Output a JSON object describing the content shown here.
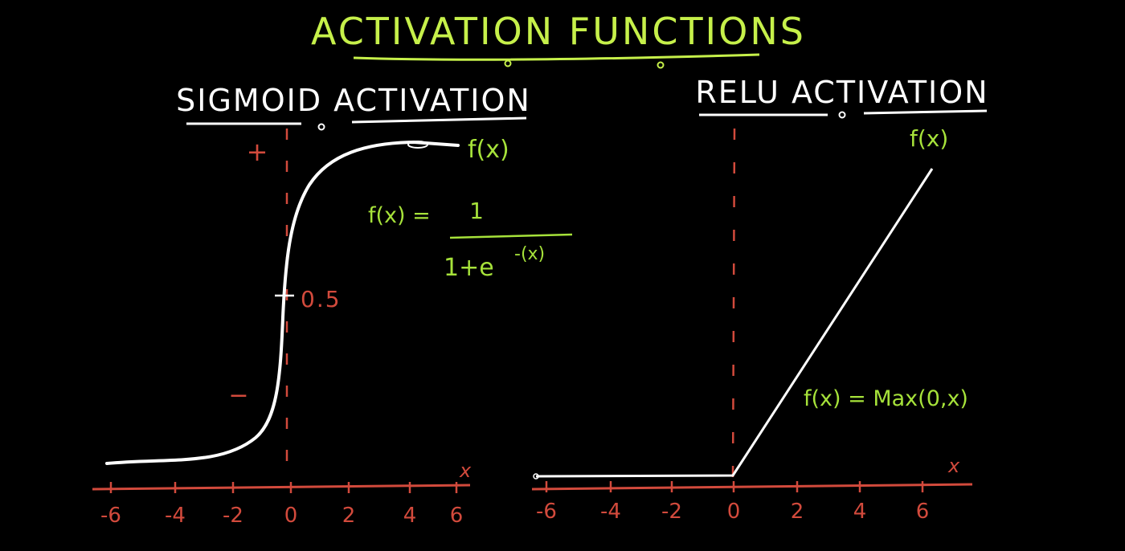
{
  "title": "ACTIVATION FUNCTIONS",
  "colors": {
    "background": "#000000",
    "title": "#c6f04a",
    "formula": "#a6e23a",
    "curve": "#ffffff",
    "axis": "#d24a3c",
    "heading": "#ffffff"
  },
  "sigmoid": {
    "heading": "SIGMOID ACTIVATION",
    "fx_label": "f(x)",
    "formula_lhs": "f(x) =",
    "formula_num": "1",
    "formula_den": "1+e",
    "formula_exp": "-(x)",
    "y_plus": "+",
    "y_half": "0.5",
    "y_minus": "−",
    "x_axis_label": "x",
    "ticks": [
      "-6",
      "-4",
      "-2",
      "0",
      "2",
      "4",
      "6"
    ]
  },
  "relu": {
    "heading": "RELU ACTIVATION",
    "fx_label": "f(x)",
    "formula": "f(x) = Max(0,x)",
    "x_axis_label": "x",
    "ticks": [
      "-6",
      "-4",
      "-2",
      "0",
      "2",
      "4",
      "6"
    ]
  }
}
